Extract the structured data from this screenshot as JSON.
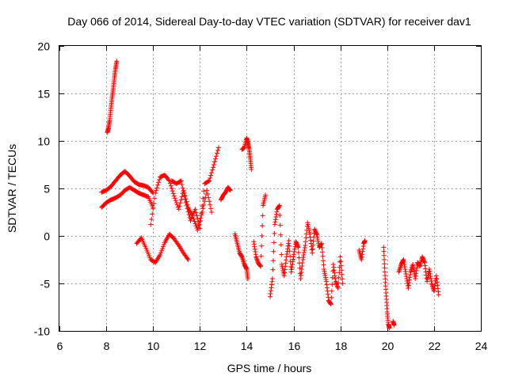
{
  "chart_data": {
    "type": "scatter",
    "title": "Day 066 of 2014, Sidereal Day-to-day VTEC variation (SDTVAR) for receiver dav1",
    "xlabel": "GPS time / hours",
    "ylabel": "SDTVAR / TECUs",
    "xlim": [
      6,
      24
    ],
    "ylim": [
      -10,
      20
    ],
    "xticks": [
      6,
      8,
      10,
      12,
      14,
      16,
      18,
      20,
      22,
      24
    ],
    "yticks": [
      -10,
      -5,
      0,
      5,
      10,
      15,
      20
    ],
    "xtick_labels": [
      "6",
      "8",
      "10",
      "12",
      "14",
      "16",
      "18",
      "20",
      "22",
      "24"
    ],
    "ytick_labels": [
      "-10",
      "-5",
      "0",
      "5",
      "10",
      "15",
      "20"
    ],
    "grid": true,
    "marker": "plus",
    "color": "#ff0000",
    "segments": [
      {
        "name": "upper-arc-a",
        "x": [
          7.8,
          8.0,
          8.2,
          8.4,
          8.6,
          8.8,
          9.0,
          9.2,
          9.4,
          9.6,
          9.8,
          10.0
        ],
        "y": [
          4.6,
          4.8,
          5.2,
          5.8,
          6.4,
          6.8,
          6.3,
          5.7,
          5.4,
          5.3,
          5.1,
          4.5
        ]
      },
      {
        "name": "upper-arc-b",
        "x": [
          7.8,
          8.0,
          8.2,
          8.4,
          8.6,
          8.8,
          9.0,
          9.2,
          9.4,
          9.6,
          9.8,
          10.0
        ],
        "y": [
          3.0,
          3.5,
          3.8,
          4.0,
          4.3,
          4.8,
          5.1,
          4.8,
          4.5,
          4.3,
          4.1,
          3.0
        ]
      },
      {
        "name": "steep-rise",
        "x": [
          8.05,
          8.1,
          8.15,
          8.2,
          8.25,
          8.3,
          8.35,
          8.4,
          8.45
        ],
        "y": [
          10.9,
          11.4,
          12.2,
          13.4,
          14.5,
          15.5,
          16.6,
          17.6,
          18.4
        ]
      },
      {
        "name": "wave-a",
        "x": [
          9.3,
          9.5,
          9.7,
          9.9,
          10.1,
          10.3,
          10.5,
          10.7,
          10.9,
          11.1,
          11.3,
          11.5
        ],
        "y": [
          -0.8,
          -0.2,
          -1.3,
          -2.5,
          -2.8,
          -2.0,
          -0.7,
          0.2,
          -0.3,
          -1.0,
          -1.8,
          -2.5
        ]
      },
      {
        "name": "wave-b",
        "x": [
          9.9,
          10.1,
          10.3,
          10.5,
          10.7,
          10.9,
          11.1,
          11.3,
          11.5,
          11.7,
          11.9,
          12.1,
          12.3,
          12.5
        ],
        "y": [
          1.2,
          4.5,
          6.2,
          6.4,
          5.8,
          4.2,
          2.8,
          4.8,
          3.0,
          2.0,
          0.6,
          2.5,
          4.8,
          2.5
        ]
      },
      {
        "name": "wave-c",
        "x": [
          10.8,
          11.0,
          11.2,
          11.4,
          11.6,
          11.8,
          12.0,
          12.2,
          12.4,
          12.6,
          12.8
        ],
        "y": [
          5.8,
          5.5,
          5.8,
          3.5,
          1.6,
          2.8,
          0.8,
          5.5,
          5.8,
          7.5,
          9.3
        ]
      },
      {
        "name": "patch-1300",
        "x": [
          12.9,
          13.0,
          13.1,
          13.2,
          13.3
        ],
        "y": [
          3.8,
          4.3,
          4.6,
          5.1,
          4.8
        ]
      },
      {
        "name": "patch-1360",
        "x": [
          13.5,
          13.6,
          13.7,
          13.8,
          13.9,
          14.0,
          14.05
        ],
        "y": [
          0.2,
          -0.8,
          -1.8,
          -2.2,
          -3.0,
          -3.5,
          -4.5
        ]
      },
      {
        "name": "high-1400",
        "x": [
          13.8,
          13.9,
          14.0,
          14.05,
          14.1,
          14.15,
          14.2
        ],
        "y": [
          9.1,
          9.3,
          10.3,
          9.8,
          9.2,
          8.2,
          7.0
        ]
      },
      {
        "name": "patch-1420",
        "x": [
          14.3,
          14.4,
          14.5,
          14.6,
          14.7,
          14.8
        ],
        "y": [
          -0.6,
          -2.2,
          -2.9,
          -3.2,
          3.2,
          4.3
        ]
      },
      {
        "name": "cluster-1500",
        "x": [
          15.0,
          15.1,
          15.2,
          15.3,
          15.4,
          15.5,
          15.6,
          15.7,
          15.8,
          15.9,
          16.0,
          16.1,
          16.2,
          16.3,
          16.4,
          16.5,
          16.6,
          16.7,
          16.8,
          16.9,
          17.0,
          17.1,
          17.2,
          17.3,
          17.4,
          17.5,
          17.6,
          17.7,
          17.8,
          17.9,
          18.0,
          18.1
        ],
        "y": [
          -6.4,
          -4.5,
          1.2,
          2.8,
          3.2,
          -3.0,
          -4.2,
          -2.2,
          -0.5,
          -3.8,
          -2.2,
          -0.6,
          -1.2,
          -4.5,
          -2.5,
          -1.0,
          1.4,
          0.2,
          -1.8,
          0.7,
          0.1,
          -1.2,
          -0.8,
          -3.5,
          -4.8,
          -6.8,
          -7.2,
          -3.0,
          -4.8,
          -5.5,
          -2.2,
          -5.0
        ]
      },
      {
        "name": "patch-1900",
        "x": [
          18.8,
          18.9,
          19.0,
          19.05
        ],
        "y": [
          -1.5,
          -2.5,
          -0.8,
          -0.5
        ]
      },
      {
        "name": "patch-1990",
        "x": [
          19.85,
          19.9,
          19.95,
          20.0,
          20.05,
          20.1
        ],
        "y": [
          -1.2,
          -3.8,
          -6.0,
          -8.0,
          -9.3,
          -9.7
        ]
      },
      {
        "name": "patch-2030",
        "x": [
          20.25,
          20.3
        ],
        "y": [
          -9.0,
          -9.4
        ]
      },
      {
        "name": "cluster-2050",
        "x": [
          20.5,
          20.6,
          20.7,
          20.8,
          20.9,
          21.0,
          21.1,
          21.2,
          21.3,
          21.4,
          21.5,
          21.6,
          21.7,
          21.8,
          21.9,
          22.0,
          22.1,
          22.2
        ],
        "y": [
          -3.8,
          -3.0,
          -2.5,
          -4.0,
          -5.5,
          -3.8,
          -3.0,
          -4.5,
          -2.8,
          -3.2,
          -2.2,
          -2.8,
          -4.8,
          -3.5,
          -5.0,
          -5.8,
          -4.2,
          -6.2
        ]
      }
    ]
  }
}
